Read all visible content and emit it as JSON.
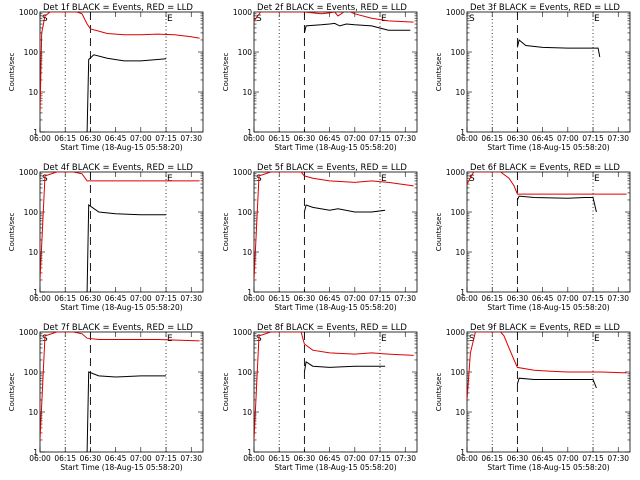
{
  "figure": {
    "xlabel": "Start Time (18-Aug-15 05:58:20)",
    "ylabel": "Counts/sec",
    "x_ticks": [
      "06:00",
      "06:15",
      "06:30",
      "06:45",
      "07:00",
      "07:15",
      "07:30"
    ],
    "y_ticks": [
      "1",
      "10",
      "100",
      "1000"
    ],
    "marker_s": "S",
    "marker_e": "E",
    "colors": {
      "events": "#000000",
      "lld": "#dd0000",
      "axes": "#000000"
    }
  },
  "chart_data": [
    {
      "type": "line",
      "title": "Det 1f BLACK = Events, RED = LLD",
      "xlim": [
        "06:00",
        "07:37"
      ],
      "ylim": [
        1,
        1000
      ],
      "y_scale": "log",
      "vlines_dotted": [
        "06:15",
        "07:15"
      ],
      "vline_dashed": "06:30",
      "series": [
        {
          "name": "Events",
          "color": "#000000",
          "x": [
            "06:28",
            "06:29",
            "06:32",
            "06:40",
            "06:50",
            "07:00",
            "07:10",
            "07:15"
          ],
          "y": [
            null,
            65,
            85,
            70,
            60,
            60,
            65,
            68
          ]
        },
        {
          "name": "LLD",
          "color": "#dd0000",
          "x": [
            "06:00",
            "06:01",
            "06:03",
            "06:06",
            "06:15",
            "06:22",
            "06:25",
            "06:28",
            "06:30",
            "06:40",
            "06:50",
            "07:00",
            "07:10",
            "07:20",
            "07:30",
            "07:35"
          ],
          "y": [
            3,
            300,
            800,
            1000,
            1000,
            1000,
            900,
            500,
            380,
            290,
            270,
            270,
            280,
            270,
            240,
            220
          ]
        }
      ]
    },
    {
      "type": "line",
      "title": "Det 2f BLACK = Events, RED = LLD",
      "xlim": [
        "06:00",
        "07:37"
      ],
      "ylim": [
        1,
        1000
      ],
      "y_scale": "log",
      "vlines_dotted": [
        "06:15",
        "07:15"
      ],
      "vline_dashed": "06:30",
      "series": [
        {
          "name": "Events",
          "color": "#000000",
          "x": [
            "06:30",
            "06:31",
            "06:40",
            "06:45",
            "06:48",
            "06:51",
            "06:55",
            "07:00",
            "07:10",
            "07:20",
            "07:33"
          ],
          "y": [
            300,
            450,
            480,
            500,
            520,
            450,
            500,
            480,
            450,
            350,
            350
          ]
        },
        {
          "name": "LLD",
          "color": "#dd0000",
          "x": [
            "06:00",
            "06:04",
            "06:10",
            "06:20",
            "06:25",
            "06:30",
            "06:40",
            "06:45",
            "06:48",
            "06:50",
            "06:55",
            "07:00",
            "07:10",
            "07:20",
            "07:35"
          ],
          "y": [
            600,
            1000,
            1000,
            1000,
            1000,
            1000,
            900,
            950,
            1000,
            800,
            1100,
            900,
            700,
            600,
            560
          ]
        }
      ]
    },
    {
      "type": "line",
      "title": "Det 3f BLACK = Events, RED = LLD",
      "xlim": [
        "06:00",
        "07:37"
      ],
      "ylim": [
        1,
        1000
      ],
      "y_scale": "log",
      "vlines_dotted": [
        "06:15",
        "07:15"
      ],
      "vline_dashed": "06:30",
      "series": [
        {
          "name": "Events",
          "color": "#000000",
          "x": [
            "06:30",
            "06:31",
            "06:35",
            "06:45",
            "07:00",
            "07:10",
            "07:18",
            "07:19"
          ],
          "y": [
            130,
            200,
            145,
            130,
            125,
            125,
            125,
            75
          ]
        }
      ]
    },
    {
      "type": "line",
      "title": "Det 4f BLACK = Events, RED = LLD",
      "xlim": [
        "06:00",
        "07:37"
      ],
      "ylim": [
        1,
        1000
      ],
      "y_scale": "log",
      "vlines_dotted": [
        "06:15",
        "07:15"
      ],
      "vline_dashed": "06:30",
      "series": [
        {
          "name": "Events",
          "color": "#000000",
          "x": [
            "06:28",
            "06:29",
            "06:35",
            "06:45",
            "07:00",
            "07:10",
            "07:15"
          ],
          "y": [
            null,
            150,
            100,
            90,
            85,
            85,
            85
          ]
        },
        {
          "name": "LLD",
          "color": "#dd0000",
          "x": [
            "06:00",
            "06:03",
            "06:10",
            "06:20",
            "06:25",
            "06:28",
            "06:35",
            "07:00",
            "07:35"
          ],
          "y": [
            2,
            800,
            1000,
            1000,
            900,
            600,
            600,
            600,
            600
          ]
        }
      ]
    },
    {
      "type": "line",
      "title": "Det 5f BLACK = Events, RED = LLD",
      "xlim": [
        "06:00",
        "07:37"
      ],
      "ylim": [
        1,
        1000
      ],
      "y_scale": "log",
      "vlines_dotted": [
        "06:15",
        "07:15"
      ],
      "vline_dashed": "06:30",
      "series": [
        {
          "name": "Events",
          "color": "#000000",
          "x": [
            "06:30",
            "06:31",
            "06:35",
            "06:45",
            "06:50",
            "07:00",
            "07:10",
            "07:18"
          ],
          "y": [
            100,
            150,
            130,
            110,
            120,
            100,
            100,
            110
          ]
        },
        {
          "name": "LLD",
          "color": "#dd0000",
          "x": [
            "06:00",
            "06:03",
            "06:10",
            "06:20",
            "06:28",
            "06:30",
            "06:35",
            "06:45",
            "07:00",
            "07:10",
            "07:20",
            "07:35"
          ],
          "y": [
            2,
            800,
            1000,
            1000,
            1000,
            800,
            700,
            600,
            550,
            600,
            550,
            450
          ]
        }
      ]
    },
    {
      "type": "line",
      "title": "Det 6f BLACK = Events, RED = LLD",
      "xlim": [
        "06:00",
        "07:37"
      ],
      "ylim": [
        1,
        1000
      ],
      "y_scale": "log",
      "vlines_dotted": [
        "06:15",
        "07:15"
      ],
      "vline_dashed": "06:30",
      "series": [
        {
          "name": "Events",
          "color": "#000000",
          "x": [
            "06:30",
            "06:31",
            "06:40",
            "07:00",
            "07:10",
            "07:15",
            "07:17"
          ],
          "y": [
            200,
            250,
            230,
            220,
            230,
            230,
            100
          ]
        },
        {
          "name": "LLD",
          "color": "#dd0000",
          "x": [
            "06:00",
            "06:04",
            "06:10",
            "06:20",
            "06:25",
            "06:28",
            "06:30",
            "07:35"
          ],
          "y": [
            500,
            1000,
            1000,
            1000,
            700,
            450,
            280,
            280
          ]
        }
      ]
    },
    {
      "type": "line",
      "title": "Det 7f BLACK = Events, RED = LLD",
      "xlim": [
        "06:00",
        "07:37"
      ],
      "ylim": [
        1,
        1000
      ],
      "y_scale": "log",
      "vlines_dotted": [
        "06:15",
        "07:15"
      ],
      "vline_dashed": "06:30",
      "series": [
        {
          "name": "Events",
          "color": "#000000",
          "x": [
            "06:28",
            "06:29",
            "06:35",
            "06:45",
            "07:00",
            "07:10",
            "07:15"
          ],
          "y": [
            null,
            100,
            80,
            75,
            80,
            80,
            80
          ]
        },
        {
          "name": "LLD",
          "color": "#dd0000",
          "x": [
            "06:00",
            "06:03",
            "06:10",
            "06:20",
            "06:25",
            "06:28",
            "06:35",
            "07:00",
            "07:10",
            "07:35"
          ],
          "y": [
            2,
            800,
            1000,
            1000,
            900,
            700,
            650,
            650,
            650,
            600
          ]
        }
      ]
    },
    {
      "type": "line",
      "title": "Det 8f BLACK = Events, RED = LLD",
      "xlim": [
        "06:00",
        "07:37"
      ],
      "ylim": [
        1,
        1000
      ],
      "y_scale": "log",
      "vlines_dotted": [
        "06:15",
        "07:15"
      ],
      "vline_dashed": "06:30",
      "series": [
        {
          "name": "Events",
          "color": "#000000",
          "x": [
            "06:30",
            "06:31",
            "06:35",
            "06:45",
            "07:00",
            "07:10",
            "07:18"
          ],
          "y": [
            100,
            180,
            140,
            130,
            140,
            140,
            140
          ]
        },
        {
          "name": "LLD",
          "color": "#dd0000",
          "x": [
            "06:00",
            "06:03",
            "06:10",
            "06:20",
            "06:28",
            "06:30",
            "06:35",
            "06:45",
            "07:00",
            "07:10",
            "07:20",
            "07:35"
          ],
          "y": [
            2,
            800,
            1000,
            1000,
            1000,
            500,
            350,
            300,
            280,
            300,
            280,
            260
          ]
        }
      ]
    },
    {
      "type": "line",
      "title": "Det 9f BLACK = Events, RED = LLD",
      "xlim": [
        "06:00",
        "07:37"
      ],
      "ylim": [
        1,
        1000
      ],
      "y_scale": "log",
      "vlines_dotted": [
        "06:15",
        "07:15"
      ],
      "vline_dashed": "06:30",
      "series": [
        {
          "name": "Events",
          "color": "#000000",
          "x": [
            "06:30",
            "06:31",
            "06:40",
            "07:00",
            "07:10",
            "07:15",
            "07:17"
          ],
          "y": [
            50,
            70,
            65,
            65,
            65,
            65,
            40
          ]
        },
        {
          "name": "LLD",
          "color": "#dd0000",
          "x": [
            "06:00",
            "06:02",
            "06:05",
            "06:10",
            "06:20",
            "06:22",
            "06:25",
            "06:28",
            "06:30",
            "06:40",
            "06:50",
            "07:00",
            "07:10",
            "07:20",
            "07:35"
          ],
          "y": [
            20,
            300,
            1000,
            1000,
            1000,
            800,
            400,
            200,
            130,
            110,
            105,
            100,
            100,
            100,
            95
          ]
        }
      ]
    }
  ]
}
